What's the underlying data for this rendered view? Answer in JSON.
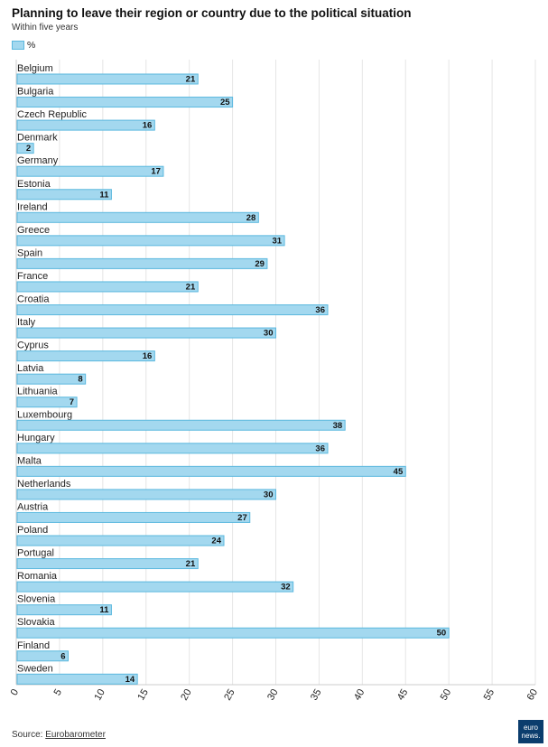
{
  "title": "Planning to leave their region or country due to the political situation",
  "subtitle": "Within five years",
  "legend": {
    "label": "%"
  },
  "footer": {
    "source_prefix": "Source: ",
    "source_link": "Eurobarometer"
  },
  "logo": {
    "line1": "euro",
    "line2": "news."
  },
  "colors": {
    "bar_fill": "#a3d8ef",
    "bar_stroke": "#5bb8de",
    "grid": "#e6e6e6",
    "axis": "#cccccc"
  },
  "chart_data": {
    "type": "bar",
    "orientation": "horizontal",
    "title": "Planning to leave their region or country due to the political situation",
    "subtitle": "Within five years",
    "categories": [
      "Belgium",
      "Bulgaria",
      "Czech Republic",
      "Denmark",
      "Germany",
      "Estonia",
      "Ireland",
      "Greece",
      "Spain",
      "France",
      "Croatia",
      "Italy",
      "Cyprus",
      "Latvia",
      "Lithuania",
      "Luxembourg",
      "Hungary",
      "Malta",
      "Netherlands",
      "Austria",
      "Poland",
      "Portugal",
      "Romania",
      "Slovenia",
      "Slovakia",
      "Finland",
      "Sweden"
    ],
    "series": [
      {
        "name": "%",
        "values": [
          21,
          25,
          16,
          2,
          17,
          11,
          28,
          31,
          29,
          21,
          36,
          30,
          16,
          8,
          7,
          38,
          36,
          45,
          30,
          27,
          24,
          21,
          32,
          11,
          50,
          6,
          14
        ]
      }
    ],
    "xlim": [
      0,
      60
    ],
    "xticks": [
      0,
      5,
      10,
      15,
      20,
      25,
      30,
      35,
      40,
      45,
      50,
      55,
      60
    ],
    "grid": true,
    "legend_position": "top-left",
    "data_labels": true
  }
}
